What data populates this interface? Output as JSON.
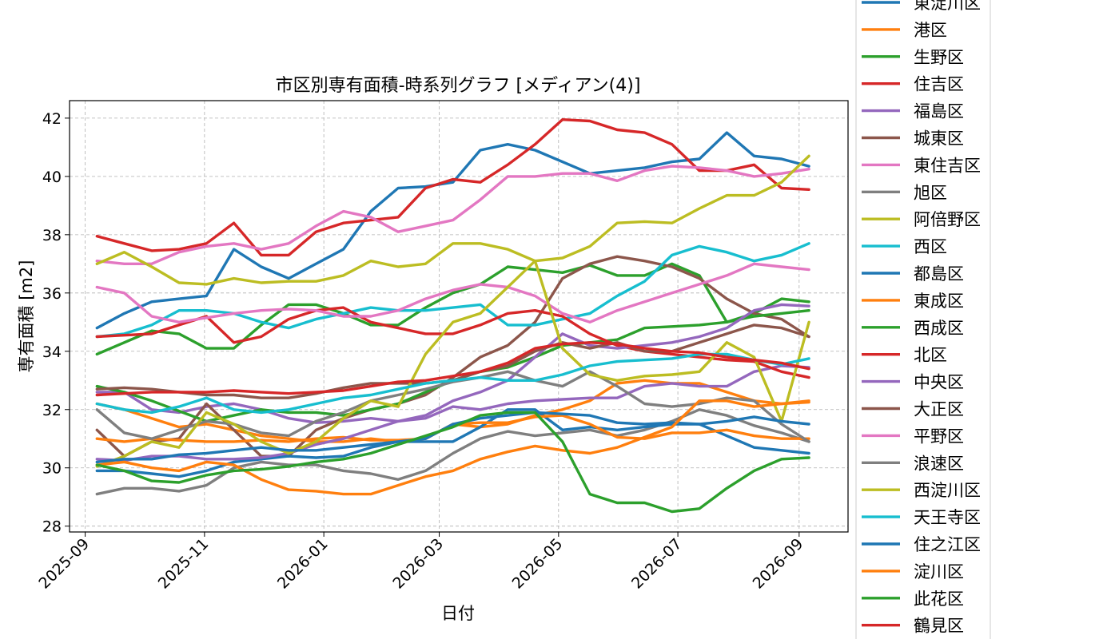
{
  "chart_data": {
    "type": "line",
    "title": "市区別専有面積-時系列グラフ [メディアン(4)]",
    "xlabel": "日付",
    "ylabel": "専有面積 [m2]",
    "xlim": [
      "2025-08-24",
      "2026-09-26"
    ],
    "ylim": [
      27.8,
      42.6
    ],
    "x_ticks": [
      "2025-09",
      "2025-11",
      "2026-01",
      "2026-03",
      "2026-05",
      "2026-07",
      "2026-09"
    ],
    "y_ticks": [
      28,
      30,
      32,
      34,
      36,
      38,
      40,
      42
    ],
    "grid": true,
    "legend_position": "right",
    "x": [
      "2025-09-07",
      "2025-09-21",
      "2025-10-05",
      "2025-10-19",
      "2025-11-02",
      "2025-11-16",
      "2025-11-30",
      "2025-12-14",
      "2025-12-28",
      "2026-01-11",
      "2026-01-25",
      "2026-02-08",
      "2026-02-22",
      "2026-03-08",
      "2026-03-22",
      "2026-04-05",
      "2026-04-19",
      "2026-05-03",
      "2026-05-17",
      "2026-05-31",
      "2026-06-14",
      "2026-06-28",
      "2026-07-12",
      "2026-07-26",
      "2026-08-09",
      "2026-08-23",
      "2026-09-06"
    ],
    "series": [
      {
        "name": "東淀川区",
        "color": "#1f77b4",
        "values": [
          34.8,
          35.3,
          35.7,
          35.8,
          35.9,
          37.5,
          36.9,
          36.5,
          37.0,
          37.5,
          38.8,
          39.6,
          39.65,
          39.8,
          40.9,
          41.1,
          40.9,
          40.5,
          40.1,
          40.2,
          40.3,
          40.5,
          40.6,
          41.5,
          40.7,
          40.6,
          40.35
        ]
      },
      {
        "name": "港区",
        "color": "#ff7f0e",
        "values": [
          32.2,
          32.0,
          31.7,
          31.4,
          31.5,
          31.3,
          31.1,
          31.0,
          30.9,
          30.9,
          31.0,
          30.9,
          31.0,
          31.5,
          31.4,
          31.5,
          31.8,
          32.0,
          32.3,
          32.9,
          33.0,
          32.9,
          32.9,
          32.6,
          32.3,
          32.2,
          32.3
        ]
      },
      {
        "name": "生野区",
        "color": "#2ca02c",
        "values": [
          33.9,
          34.3,
          34.7,
          34.6,
          34.1,
          34.1,
          34.9,
          35.6,
          35.6,
          35.3,
          34.9,
          34.9,
          35.5,
          36.0,
          36.3,
          36.9,
          36.8,
          36.7,
          36.95,
          36.6,
          36.6,
          37.0,
          36.6,
          35.0,
          35.3,
          35.8,
          35.7
        ]
      },
      {
        "name": "住吉区",
        "color": "#d62728",
        "values": [
          37.95,
          37.7,
          37.45,
          37.5,
          37.7,
          38.4,
          37.3,
          37.3,
          38.1,
          38.4,
          38.5,
          38.6,
          39.6,
          39.9,
          39.8,
          40.4,
          41.1,
          41.95,
          41.9,
          41.6,
          41.5,
          41.1,
          40.2,
          40.2,
          40.4,
          39.6,
          39.55
        ]
      },
      {
        "name": "福島区",
        "color": "#9467bd",
        "values": [
          32.6,
          32.6,
          32.0,
          31.9,
          32.1,
          32.2,
          32.0,
          31.7,
          31.55,
          31.6,
          31.7,
          31.6,
          31.7,
          32.1,
          32.0,
          32.2,
          32.3,
          32.35,
          32.4,
          32.4,
          32.8,
          32.9,
          32.8,
          32.8,
          33.3,
          33.5,
          33.45
        ]
      },
      {
        "name": "城東区",
        "color": "#8c564b",
        "values": [
          31.3,
          30.4,
          30.9,
          31.0,
          32.2,
          31.3,
          30.4,
          30.4,
          31.3,
          31.7,
          32.0,
          32.2,
          32.5,
          33.1,
          33.8,
          34.2,
          35.0,
          36.5,
          37.0,
          37.25,
          37.1,
          36.9,
          36.5,
          35.8,
          35.3,
          35.1,
          34.5
        ]
      },
      {
        "name": "東住吉区",
        "color": "#e377c2",
        "values": [
          37.1,
          37.0,
          37.0,
          37.4,
          37.6,
          37.7,
          37.5,
          37.7,
          38.3,
          38.8,
          38.6,
          38.1,
          38.3,
          38.5,
          39.2,
          40.0,
          40.0,
          40.1,
          40.1,
          39.85,
          40.2,
          40.35,
          40.3,
          40.2,
          40.0,
          40.1,
          40.25
        ]
      },
      {
        "name": "旭区",
        "color": "#7f7f7f",
        "values": [
          29.1,
          29.3,
          29.3,
          29.2,
          29.4,
          30.0,
          30.2,
          30.1,
          30.1,
          29.9,
          29.8,
          29.6,
          29.9,
          30.5,
          31.0,
          31.25,
          31.1,
          31.2,
          31.3,
          31.1,
          31.3,
          31.6,
          32.0,
          31.8,
          31.45,
          31.2,
          30.9
        ]
      },
      {
        "name": "阿倍野区",
        "color": "#bcbd22",
        "values": [
          37.0,
          37.4,
          36.9,
          36.35,
          36.3,
          36.5,
          36.35,
          36.4,
          36.4,
          36.6,
          37.1,
          36.9,
          37.0,
          37.7,
          37.7,
          37.5,
          37.1,
          37.2,
          37.6,
          38.4,
          38.45,
          38.4,
          38.9,
          39.35,
          39.35,
          39.8,
          40.7
        ]
      },
      {
        "name": "西区",
        "color": "#17becf",
        "values": [
          34.5,
          34.6,
          34.9,
          35.4,
          35.4,
          35.3,
          35.0,
          34.8,
          35.1,
          35.3,
          35.5,
          35.4,
          35.4,
          35.5,
          35.6,
          34.9,
          34.9,
          35.1,
          35.3,
          35.9,
          36.4,
          37.3,
          37.6,
          37.4,
          37.1,
          37.3,
          37.7
        ]
      },
      {
        "name": "都島区",
        "color": "#1f77b4",
        "values": [
          29.9,
          29.9,
          29.8,
          29.7,
          29.9,
          30.2,
          30.3,
          30.4,
          30.35,
          30.4,
          30.7,
          30.9,
          30.9,
          30.9,
          31.4,
          32.0,
          32.0,
          31.3,
          31.4,
          31.3,
          31.4,
          31.5,
          31.5,
          31.1,
          30.7,
          30.6,
          30.5
        ]
      },
      {
        "name": "東成区",
        "color": "#ff7f0e",
        "values": [
          31.0,
          30.9,
          31.0,
          30.95,
          30.9,
          30.9,
          30.95,
          30.9,
          31.0,
          31.05,
          30.95,
          30.95,
          31.0,
          31.5,
          31.55,
          31.55,
          31.75,
          31.8,
          31.5,
          31.05,
          31.0,
          31.2,
          31.2,
          31.3,
          31.1,
          31.0,
          31.0
        ]
      },
      {
        "name": "西成区",
        "color": "#2ca02c",
        "values": [
          32.8,
          32.6,
          32.3,
          31.95,
          31.6,
          31.8,
          32.0,
          31.9,
          31.9,
          31.8,
          32.0,
          32.2,
          32.6,
          33.0,
          33.3,
          33.45,
          33.8,
          34.2,
          34.3,
          34.4,
          34.8,
          34.85,
          34.9,
          35.0,
          35.2,
          35.3,
          35.4
        ]
      },
      {
        "name": "北区",
        "color": "#d62728",
        "values": [
          34.5,
          34.55,
          34.6,
          34.9,
          35.2,
          34.3,
          34.5,
          35.1,
          35.4,
          35.5,
          35.0,
          34.8,
          34.6,
          34.6,
          34.9,
          35.3,
          35.4,
          35.2,
          34.6,
          34.2,
          34.0,
          33.9,
          33.8,
          33.7,
          33.65,
          33.3,
          33.1
        ]
      },
      {
        "name": "中央区",
        "color": "#9467bd",
        "values": [
          30.3,
          30.25,
          30.4,
          30.4,
          30.3,
          30.3,
          30.35,
          30.5,
          30.8,
          31.0,
          31.3,
          31.6,
          31.8,
          32.3,
          32.6,
          33.0,
          33.8,
          34.6,
          34.2,
          34.1,
          34.2,
          34.3,
          34.5,
          34.8,
          35.4,
          35.6,
          35.55
        ]
      },
      {
        "name": "大正区",
        "color": "#8c564b",
        "values": [
          32.7,
          32.75,
          32.7,
          32.6,
          32.5,
          32.5,
          32.4,
          32.4,
          32.55,
          32.75,
          32.9,
          32.9,
          32.9,
          33.0,
          33.3,
          33.5,
          34.0,
          34.3,
          34.1,
          34.3,
          34.0,
          34.0,
          34.3,
          34.6,
          34.9,
          34.8,
          34.5
        ]
      },
      {
        "name": "平野区",
        "color": "#e377c2",
        "values": [
          36.2,
          36.0,
          35.2,
          35.0,
          35.15,
          35.3,
          35.4,
          35.45,
          35.4,
          35.2,
          35.2,
          35.4,
          35.8,
          36.1,
          36.3,
          36.2,
          35.9,
          35.3,
          35.0,
          35.4,
          35.7,
          36.0,
          36.3,
          36.6,
          37.0,
          36.9,
          36.8
        ]
      },
      {
        "name": "浪速区",
        "color": "#7f7f7f",
        "values": [
          32.0,
          31.2,
          31.0,
          31.3,
          31.6,
          31.5,
          31.2,
          31.1,
          31.6,
          31.9,
          32.3,
          32.5,
          32.7,
          32.95,
          33.1,
          33.3,
          33.0,
          32.8,
          33.3,
          32.8,
          32.2,
          32.1,
          32.2,
          32.4,
          32.3,
          31.5,
          30.9
        ]
      },
      {
        "name": "西淀川区",
        "color": "#bcbd22",
        "values": [
          30.05,
          30.4,
          30.9,
          30.7,
          31.9,
          31.5,
          30.9,
          30.5,
          30.9,
          31.7,
          32.3,
          32.1,
          33.9,
          35.0,
          35.3,
          36.2,
          37.1,
          34.1,
          33.2,
          33.0,
          33.15,
          33.2,
          33.3,
          34.3,
          33.8,
          31.6,
          35.0
        ]
      },
      {
        "name": "天王寺区",
        "color": "#17becf",
        "values": [
          32.2,
          32.0,
          31.9,
          32.1,
          32.4,
          32.0,
          31.9,
          32.0,
          32.2,
          32.4,
          32.5,
          32.7,
          32.9,
          33.0,
          33.1,
          33.0,
          33.0,
          33.2,
          33.5,
          33.65,
          33.7,
          33.75,
          33.9,
          33.9,
          33.7,
          33.55,
          33.75
        ]
      },
      {
        "name": "住之江区",
        "color": "#1f77b4",
        "values": [
          30.2,
          30.3,
          30.3,
          30.45,
          30.5,
          30.6,
          30.7,
          30.6,
          30.6,
          30.7,
          30.8,
          30.9,
          31.0,
          31.5,
          31.7,
          31.8,
          31.9,
          31.85,
          31.8,
          31.55,
          31.5,
          31.55,
          31.5,
          31.6,
          31.75,
          31.6,
          31.5
        ]
      },
      {
        "name": "淀川区",
        "color": "#ff7f0e",
        "values": [
          30.1,
          30.2,
          30.0,
          29.9,
          30.2,
          30.1,
          29.6,
          29.25,
          29.2,
          29.1,
          29.1,
          29.4,
          29.7,
          29.9,
          30.3,
          30.55,
          30.75,
          30.6,
          30.5,
          30.7,
          31.05,
          31.4,
          32.3,
          32.3,
          32.1,
          32.2,
          32.25
        ]
      },
      {
        "name": "此花区",
        "color": "#2ca02c",
        "values": [
          30.1,
          29.9,
          29.55,
          29.5,
          29.75,
          29.9,
          29.95,
          30.05,
          30.2,
          30.3,
          30.5,
          30.8,
          31.1,
          31.4,
          31.8,
          31.9,
          31.9,
          30.9,
          29.1,
          28.8,
          28.8,
          28.5,
          28.6,
          29.3,
          29.9,
          30.3,
          30.35
        ]
      },
      {
        "name": "鶴見区",
        "color": "#d62728",
        "values": [
          32.5,
          32.55,
          32.6,
          32.6,
          32.6,
          32.65,
          32.6,
          32.55,
          32.6,
          32.65,
          32.8,
          32.95,
          33.0,
          33.15,
          33.3,
          33.6,
          34.1,
          34.25,
          34.3,
          34.25,
          34.1,
          34.0,
          33.95,
          33.8,
          33.7,
          33.6,
          33.4
        ]
      }
    ]
  }
}
